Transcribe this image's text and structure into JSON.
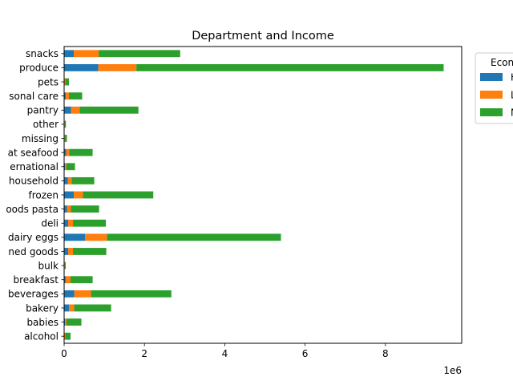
{
  "chart_data": {
    "type": "bar",
    "orientation": "horizontal",
    "stacked": true,
    "title": "Department and Income",
    "xlabel": "",
    "ylabel": "",
    "x_offset_label": "1e6",
    "xlim": [
      0,
      9900000
    ],
    "x_ticks": [
      0,
      2000000,
      4000000,
      6000000,
      8000000
    ],
    "x_tick_labels": [
      "0",
      "2",
      "4",
      "6",
      "8"
    ],
    "grid": false,
    "legend_title": "Economic",
    "legend_placement": "upper-left outside right, clipped",
    "categories": [
      "alcohol",
      "babies",
      "bakery",
      "beverages",
      "breakfast",
      "bulk",
      "canned goods",
      "dairy eggs",
      "deli",
      "dry goods pasta",
      "frozen",
      "household",
      "international",
      "meat seafood",
      "missing",
      "other",
      "pantry",
      "personal care",
      "pets",
      "produce",
      "snacks"
    ],
    "category_labels_visible": [
      "alcohol",
      "babies",
      "bakery",
      "beverages",
      "breakfast",
      "bulk",
      "ned goods",
      "dairy eggs",
      "deli",
      "oods pasta",
      "frozen",
      "household",
      "ernational",
      "at seafood",
      "missing",
      "other",
      "pantry",
      "sonal care",
      "pets",
      "produce",
      "snacks"
    ],
    "series": [
      {
        "name": "H",
        "color": "#1f77b4",
        "values": [
          10000,
          20000,
          120000,
          250000,
          40000,
          5000,
          100000,
          520000,
          100000,
          70000,
          240000,
          90000,
          20000,
          50000,
          5000,
          5000,
          170000,
          40000,
          10000,
          850000,
          240000
        ]
      },
      {
        "name": "L",
        "color": "#ff7f0e",
        "values": [
          20000,
          40000,
          130000,
          420000,
          120000,
          10000,
          120000,
          550000,
          120000,
          100000,
          230000,
          100000,
          40000,
          80000,
          10000,
          10000,
          220000,
          80000,
          20000,
          950000,
          620000
        ]
      },
      {
        "name": "M",
        "color": "#2ca02c",
        "values": [
          130000,
          370000,
          920000,
          2000000,
          550000,
          25000,
          830000,
          4330000,
          820000,
          700000,
          1750000,
          560000,
          210000,
          580000,
          55000,
          30000,
          1460000,
          330000,
          90000,
          7650000,
          2030000
        ]
      }
    ]
  }
}
